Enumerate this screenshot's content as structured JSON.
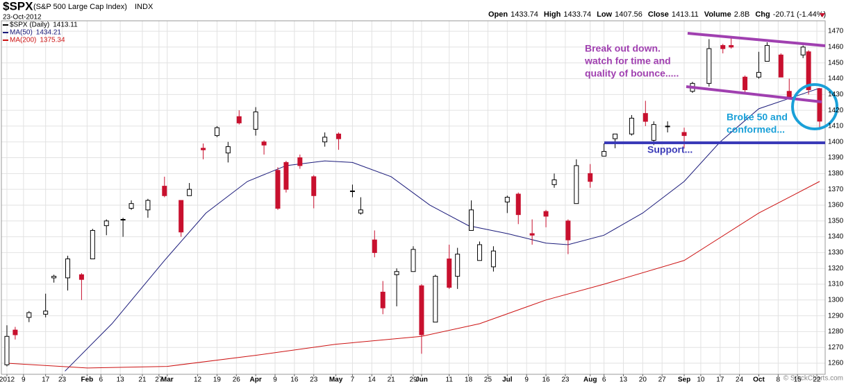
{
  "header": {
    "symbol": "$SPX",
    "name": "(S&P 500 Large Cap Index)",
    "exchange": "INDX",
    "date": "23-Oct-2012",
    "quote": [
      {
        "label": "Open",
        "value": "1433.74"
      },
      {
        "label": "High",
        "value": "1433.74"
      },
      {
        "label": "Low",
        "value": "1407.56"
      },
      {
        "label": "Close",
        "value": "1413.11"
      },
      {
        "label": "Volume",
        "value": "2.8B"
      },
      {
        "label": "Chg",
        "value": "-20.71 (-1.44%)"
      }
    ],
    "watermark": "© StockCharts.com"
  },
  "chart_data": {
    "type": "candlestick",
    "name": "$SPX (Daily)",
    "last": "1413.11",
    "up_color": "#000000",
    "down_color": "#c8102e",
    "x": [
      "2012-01-03",
      "2012-01-06",
      "2012-01-11",
      "2012-01-17",
      "2012-01-20",
      "2012-01-25",
      "2012-01-30",
      "2012-02-03",
      "2012-02-08",
      "2012-02-14",
      "2012-02-17",
      "2012-02-23",
      "2012-02-29",
      "2012-03-06",
      "2012-03-09",
      "2012-03-14",
      "2012-03-19",
      "2012-03-23",
      "2012-03-27",
      "2012-04-02",
      "2012-04-05",
      "2012-04-10",
      "2012-04-13",
      "2012-04-18",
      "2012-04-23",
      "2012-04-27",
      "2012-05-02",
      "2012-05-07",
      "2012-05-10",
      "2012-05-15",
      "2012-05-18",
      "2012-05-23",
      "2012-05-29",
      "2012-06-01",
      "2012-06-06",
      "2012-06-11",
      "2012-06-14",
      "2012-06-19",
      "2012-06-22",
      "2012-06-27",
      "2012-07-02",
      "2012-07-06",
      "2012-07-11",
      "2012-07-16",
      "2012-07-19",
      "2012-07-24",
      "2012-07-27",
      "2012-08-01",
      "2012-08-06",
      "2012-08-10",
      "2012-08-16",
      "2012-08-21",
      "2012-08-24",
      "2012-08-29",
      "2012-09-04",
      "2012-09-07",
      "2012-09-13",
      "2012-09-18",
      "2012-09-21",
      "2012-09-26",
      "2012-10-01",
      "2012-10-04",
      "2012-10-09",
      "2012-10-12",
      "2012-10-17",
      "2012-10-19",
      "2012-10-23"
    ],
    "open": [
      1259,
      1281,
      1289,
      1291,
      1314,
      1314,
      1316,
      1326,
      1347,
      1351,
      1358,
      1357,
      1372,
      1363,
      1366,
      1396,
      1404,
      1393,
      1416,
      1408,
      1400,
      1382,
      1387,
      1390,
      1378,
      1400,
      1405,
      1369,
      1355,
      1338,
      1305,
      1316,
      1318,
      1309,
      1286,
      1326,
      1315,
      1344,
      1325,
      1321,
      1362,
      1367,
      1342,
      1356,
      1373,
      1350,
      1361,
      1380,
      1391,
      1402,
      1405,
      1418,
      1401,
      1410,
      1406,
      1432,
      1437,
      1461,
      1461,
      1441,
      1441,
      1451,
      1455,
      1432,
      1455,
      1457,
      1433.74
    ],
    "high": [
      1284,
      1283,
      1293,
      1304,
      1316,
      1328,
      1317,
      1345,
      1351,
      1352,
      1363,
      1364,
      1378,
      1363,
      1374,
      1399,
      1410,
      1400,
      1420,
      1422,
      1401,
      1384,
      1388,
      1392,
      1379,
      1406,
      1406,
      1373,
      1365,
      1344,
      1312,
      1320,
      1334,
      1310,
      1316,
      1335,
      1333,
      1363,
      1337,
      1334,
      1366,
      1368,
      1351,
      1357,
      1380,
      1351,
      1389,
      1386,
      1399,
      1405,
      1417,
      1426,
      1413,
      1413,
      1409,
      1438,
      1465,
      1462,
      1467,
      1442,
      1457,
      1463,
      1456,
      1440,
      1461,
      1458,
      1433.74
    ],
    "low": [
      1258,
      1275,
      1286,
      1289,
      1311,
      1306,
      1300,
      1326,
      1341,
      1340,
      1357,
      1352,
      1365,
      1340,
      1366,
      1389,
      1403,
      1387,
      1411,
      1404,
      1392,
      1357,
      1368,
      1383,
      1358,
      1397,
      1395,
      1365,
      1354,
      1327,
      1291,
      1296,
      1318,
      1266,
      1286,
      1307,
      1307,
      1344,
      1325,
      1318,
      1355,
      1348,
      1335,
      1346,
      1371,
      1329,
      1361,
      1371,
      1391,
      1396,
      1404,
      1410,
      1398,
      1406,
      1396,
      1431,
      1435,
      1456,
      1459,
      1430,
      1440,
      1451,
      1441,
      1427,
      1453,
      1430,
      1407.56
    ],
    "close": [
      1277,
      1278,
      1292,
      1293,
      1315,
      1326,
      1313,
      1344,
      1350,
      1351,
      1361,
      1363,
      1366,
      1343,
      1370,
      1395,
      1409,
      1397,
      1412,
      1419,
      1398,
      1358,
      1370,
      1385,
      1366,
      1403,
      1402,
      1369,
      1357,
      1330,
      1295,
      1318,
      1332,
      1278,
      1315,
      1308,
      1329,
      1357,
      1335,
      1331,
      1365,
      1354,
      1341,
      1353,
      1376,
      1338,
      1385,
      1375,
      1394,
      1405,
      1415,
      1413,
      1411,
      1410,
      1404,
      1437,
      1459,
      1459,
      1460,
      1433,
      1444,
      1461,
      1441,
      1428,
      1460,
      1433,
      1413.11
    ],
    "overlays": [
      {
        "name": "MA(50)",
        "legend_value": "1434.21",
        "color": "#1a1a7a",
        "x": [
          "2012-01-24",
          "2012-02-10",
          "2012-02-29",
          "2012-03-15",
          "2012-03-30",
          "2012-04-13",
          "2012-04-27",
          "2012-05-07",
          "2012-05-21",
          "2012-06-04",
          "2012-06-18",
          "2012-07-02",
          "2012-07-16",
          "2012-07-24",
          "2012-08-06",
          "2012-08-20",
          "2012-09-04",
          "2012-09-17",
          "2012-10-01",
          "2012-10-23"
        ],
        "values": [
          1255,
          1285,
          1325,
          1355,
          1375,
          1385,
          1388,
          1387,
          1378,
          1360,
          1347,
          1342,
          1336,
          1335,
          1341,
          1355,
          1375,
          1400,
          1421,
          1434
        ]
      },
      {
        "name": "MA(200)",
        "legend_value": "1375.34",
        "color": "#cc1111",
        "x": [
          "2012-01-03",
          "2012-02-01",
          "2012-03-01",
          "2012-04-02",
          "2012-05-01",
          "2012-06-01",
          "2012-06-22",
          "2012-07-16",
          "2012-08-06",
          "2012-09-04",
          "2012-10-01",
          "2012-10-23"
        ],
        "values": [
          1260,
          1257,
          1258,
          1265,
          1272,
          1277,
          1285,
          1300,
          1310,
          1325,
          1355,
          1375
        ]
      }
    ],
    "xlim": [
      "2012-01-01",
      "2012-10-25"
    ],
    "ylim": [
      1253,
      1481
    ],
    "yticks": [
      1260,
      1270,
      1280,
      1290,
      1300,
      1310,
      1320,
      1330,
      1340,
      1350,
      1360,
      1370,
      1380,
      1390,
      1400,
      1410,
      1420,
      1430,
      1440,
      1450,
      1460,
      1470
    ],
    "xticks": [
      {
        "value": "2012-01-03",
        "label": "2012"
      },
      {
        "value": "2012-01-09",
        "label": "9"
      },
      {
        "value": "2012-01-17",
        "label": "17"
      },
      {
        "value": "2012-01-23",
        "label": "23"
      },
      {
        "value": "2012-02-01",
        "label": "Feb"
      },
      {
        "value": "2012-02-06",
        "label": "6"
      },
      {
        "value": "2012-02-13",
        "label": "13"
      },
      {
        "value": "2012-02-21",
        "label": "21"
      },
      {
        "value": "2012-02-27",
        "label": "27"
      },
      {
        "value": "2012-03-01",
        "label": "Mar"
      },
      {
        "value": "2012-03-12",
        "label": "12"
      },
      {
        "value": "2012-03-19",
        "label": "19"
      },
      {
        "value": "2012-03-26",
        "label": "26"
      },
      {
        "value": "2012-04-02",
        "label": "Apr"
      },
      {
        "value": "2012-04-09",
        "label": "9"
      },
      {
        "value": "2012-04-16",
        "label": "16"
      },
      {
        "value": "2012-04-23",
        "label": "23"
      },
      {
        "value": "2012-05-01",
        "label": "May"
      },
      {
        "value": "2012-05-07",
        "label": "7"
      },
      {
        "value": "2012-05-14",
        "label": "14"
      },
      {
        "value": "2012-05-21",
        "label": "21"
      },
      {
        "value": "2012-05-29",
        "label": "29"
      },
      {
        "value": "2012-06-01",
        "label": "Jun"
      },
      {
        "value": "2012-06-11",
        "label": "11"
      },
      {
        "value": "2012-06-18",
        "label": "18"
      },
      {
        "value": "2012-06-25",
        "label": "25"
      },
      {
        "value": "2012-07-02",
        "label": "Jul"
      },
      {
        "value": "2012-07-09",
        "label": "9"
      },
      {
        "value": "2012-07-16",
        "label": "16"
      },
      {
        "value": "2012-07-23",
        "label": "23"
      },
      {
        "value": "2012-08-01",
        "label": "Aug"
      },
      {
        "value": "2012-08-06",
        "label": "6"
      },
      {
        "value": "2012-08-13",
        "label": "13"
      },
      {
        "value": "2012-08-20",
        "label": "20"
      },
      {
        "value": "2012-08-27",
        "label": "27"
      },
      {
        "value": "2012-09-04",
        "label": "Sep"
      },
      {
        "value": "2012-09-10",
        "label": "10"
      },
      {
        "value": "2012-09-17",
        "label": "17"
      },
      {
        "value": "2012-09-24",
        "label": "24"
      },
      {
        "value": "2012-10-01",
        "label": "Oct"
      },
      {
        "value": "2012-10-08",
        "label": "8"
      },
      {
        "value": "2012-10-15",
        "label": "15"
      },
      {
        "value": "2012-10-22",
        "label": "22"
      }
    ],
    "grid": true,
    "annotations": {
      "breakout": [
        "Break out down.",
        "watch for time and",
        "quality of  bounce....."
      ],
      "broke": [
        "Broke 50 and",
        "conformed..."
      ],
      "support": "Support..."
    }
  }
}
